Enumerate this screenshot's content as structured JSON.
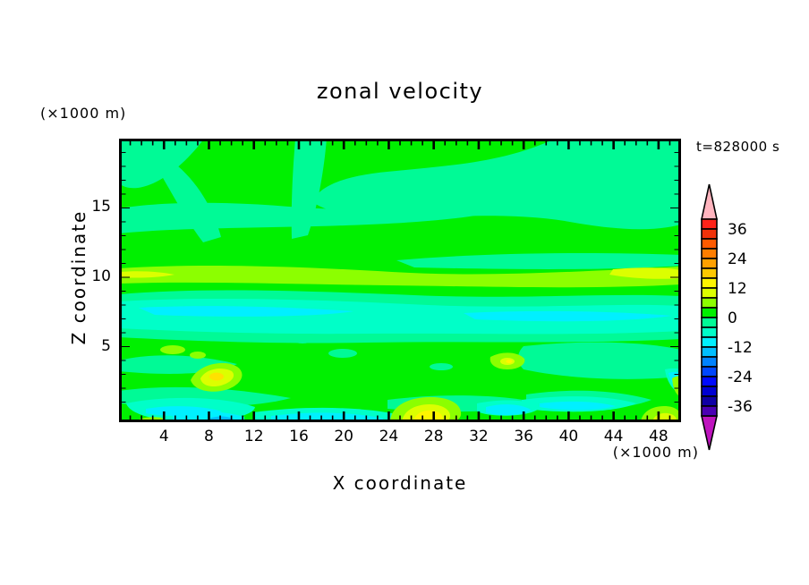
{
  "title": "zonal velocity",
  "annotations": {
    "time": "t=828000 s"
  },
  "axes": {
    "x": {
      "label": "X coordinate",
      "unit": "(×1000 m)",
      "range": [
        0,
        50
      ],
      "major_ticks": [
        4,
        8,
        12,
        16,
        20,
        24,
        28,
        32,
        36,
        40,
        44,
        48
      ],
      "tick_labels": [
        "4",
        "8",
        "12",
        "16",
        "20",
        "24",
        "28",
        "32",
        "36",
        "40",
        "44",
        "48"
      ],
      "minor_step": 1
    },
    "y": {
      "label": "Z coordinate",
      "unit": "(×1000 m)",
      "range": [
        0,
        20
      ],
      "major_ticks": [
        5,
        10,
        15
      ],
      "tick_labels": [
        "5",
        "10",
        "15"
      ],
      "minor_step": 1
    }
  },
  "colorbar": {
    "tick_labels": [
      {
        "label": "36",
        "level": 36
      },
      {
        "label": "24",
        "level": 24
      },
      {
        "label": "12",
        "level": 12
      },
      {
        "label": "0",
        "level": 0
      },
      {
        "label": "-12",
        "level": -12
      },
      {
        "label": "-24",
        "level": -24
      },
      {
        "label": "-36",
        "level": -36
      }
    ],
    "segments": [
      {
        "from": 36,
        "to": 40,
        "color": "#FF2319"
      },
      {
        "from": 32,
        "to": 36,
        "color": "#F0320A"
      },
      {
        "from": 28,
        "to": 32,
        "color": "#FF5A00"
      },
      {
        "from": 24,
        "to": 28,
        "color": "#FF7D00"
      },
      {
        "from": 20,
        "to": 24,
        "color": "#FFA000"
      },
      {
        "from": 16,
        "to": 20,
        "color": "#FFC800"
      },
      {
        "from": 12,
        "to": 16,
        "color": "#FFF500"
      },
      {
        "from": 8,
        "to": 12,
        "color": "#DCFF00"
      },
      {
        "from": 4,
        "to": 8,
        "color": "#8CFF00"
      },
      {
        "from": 0,
        "to": 4,
        "color": "#00F000"
      },
      {
        "from": -4,
        "to": 0,
        "color": "#00FA96"
      },
      {
        "from": -8,
        "to": -4,
        "color": "#00FFC8"
      },
      {
        "from": -12,
        "to": -8,
        "color": "#00F0FF"
      },
      {
        "from": -16,
        "to": -12,
        "color": "#00BEFF"
      },
      {
        "from": -20,
        "to": -16,
        "color": "#0082FF"
      },
      {
        "from": -24,
        "to": -20,
        "color": "#0046FF"
      },
      {
        "from": -28,
        "to": -24,
        "color": "#000AFF"
      },
      {
        "from": -32,
        "to": -28,
        "color": "#0000D2"
      },
      {
        "from": -36,
        "to": -32,
        "color": "#0F00A5"
      },
      {
        "from": -40,
        "to": -36,
        "color": "#4B00B4"
      }
    ],
    "over_arrow_color": "#FFB4BE",
    "under_arrow_color": "#BE14BE"
  },
  "chart_data": {
    "type": "heatmap",
    "subtype": "filled_contour",
    "title": "zonal velocity",
    "time_label": "t=828000 s",
    "xlabel": "X coordinate",
    "x_unit": "(×1000 m)",
    "ylabel": "Z coordinate",
    "y_unit": "(×1000 m)",
    "x_range": [
      0,
      50
    ],
    "z_range": [
      0,
      20
    ],
    "x_major_ticks": [
      4,
      8,
      12,
      16,
      20,
      24,
      28,
      32,
      36,
      40,
      44,
      48
    ],
    "z_major_ticks": [
      5,
      10,
      15
    ],
    "contour_interval": 4,
    "levels": [
      -40,
      -36,
      -32,
      -28,
      -24,
      -20,
      -16,
      -12,
      -8,
      -4,
      0,
      4,
      8,
      12,
      16,
      20,
      24,
      28,
      32,
      36,
      40
    ],
    "colorbar_tick_values": [
      36,
      24,
      12,
      0,
      -12,
      -24,
      -36
    ],
    "grid": false,
    "legend_position": "right-colorbar",
    "field_structure_approx": [
      {
        "z_band": [
          10.5,
          20
        ],
        "value_range": [
          -4,
          4
        ],
        "note": "upper layer near zero velocity: broad patches alternating between 0..4 (green) and -4..0 (spring green)"
      },
      {
        "z_band": [
          9,
          10.5
        ],
        "value_range": [
          4,
          12
        ],
        "note": "thin eastward jet band (chartreuse / yellow-green) spanning the full x range near z=10"
      },
      {
        "z_band": [
          6,
          8.5
        ],
        "value_range": [
          -12,
          -4
        ],
        "note": "westward band (aquamarine with cyan core) spanning the full x range near z=7"
      },
      {
        "z_band": [
          0,
          6
        ],
        "value_range": [
          -16,
          16
        ],
        "note": "mottled lower layer mixing -4..4 patches with local extrema"
      },
      {
        "point": {
          "x": 8.7,
          "z": 2.8
        },
        "value_range": [
          12,
          20
        ],
        "note": "local eastward maximum (gold/yellow core)"
      },
      {
        "point": {
          "x": 27.3,
          "z": 0.3
        },
        "value_range": [
          12,
          16
        ],
        "note": "eastward maximum at bottom boundary (yellow core)"
      },
      {
        "point": {
          "x": 34.6,
          "z": 3.9
        },
        "value_range": [
          8,
          16
        ],
        "note": "small eastward maximum (yellow speck)"
      },
      {
        "point": {
          "x": 48.5,
          "z": 0.3
        },
        "value_range": [
          8,
          12
        ],
        "note": "yellow-green spot at bottom right"
      },
      {
        "point": {
          "x": 9.1,
          "z": 0.1
        },
        "value_range": [
          -16,
          -12
        ],
        "note": "westward minimum sliver (blue) at bottom boundary"
      }
    ]
  }
}
